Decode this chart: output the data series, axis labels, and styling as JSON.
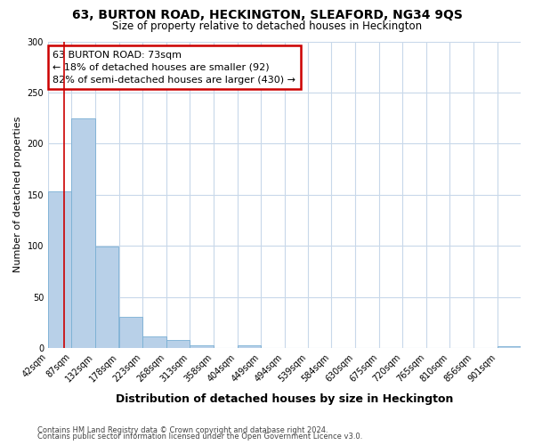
{
  "title1": "63, BURTON ROAD, HECKINGTON, SLEAFORD, NG34 9QS",
  "title2": "Size of property relative to detached houses in Heckington",
  "xlabel": "Distribution of detached houses by size in Heckington",
  "ylabel": "Number of detached properties",
  "bar_color": "#b8d0e8",
  "bar_edge_color": "#7aafd4",
  "vline_color": "#cc0000",
  "vline_x": 73,
  "annotation_title": "63 BURTON ROAD: 73sqm",
  "annotation_line1": "← 18% of detached houses are smaller (92)",
  "annotation_line2": "82% of semi-detached houses are larger (430) →",
  "annotation_box_color": "#ffffff",
  "annotation_box_edge": "#cc0000",
  "bins": [
    42,
    87,
    132,
    178,
    223,
    268,
    313,
    358,
    404,
    449,
    494,
    539,
    584,
    630,
    675,
    720,
    765,
    810,
    856,
    901,
    946
  ],
  "bar_heights": [
    153,
    225,
    99,
    31,
    11,
    8,
    3,
    0,
    3,
    0,
    0,
    0,
    0,
    0,
    0,
    0,
    0,
    0,
    0,
    2
  ],
  "ylim": [
    0,
    300
  ],
  "yticks": [
    0,
    50,
    100,
    150,
    200,
    250,
    300
  ],
  "footer1": "Contains HM Land Registry data © Crown copyright and database right 2024.",
  "footer2": "Contains public sector information licensed under the Open Government Licence v3.0.",
  "fig_bg_color": "#ffffff",
  "plot_bg_color": "#ffffff",
  "grid_color": "#c8d8ea"
}
